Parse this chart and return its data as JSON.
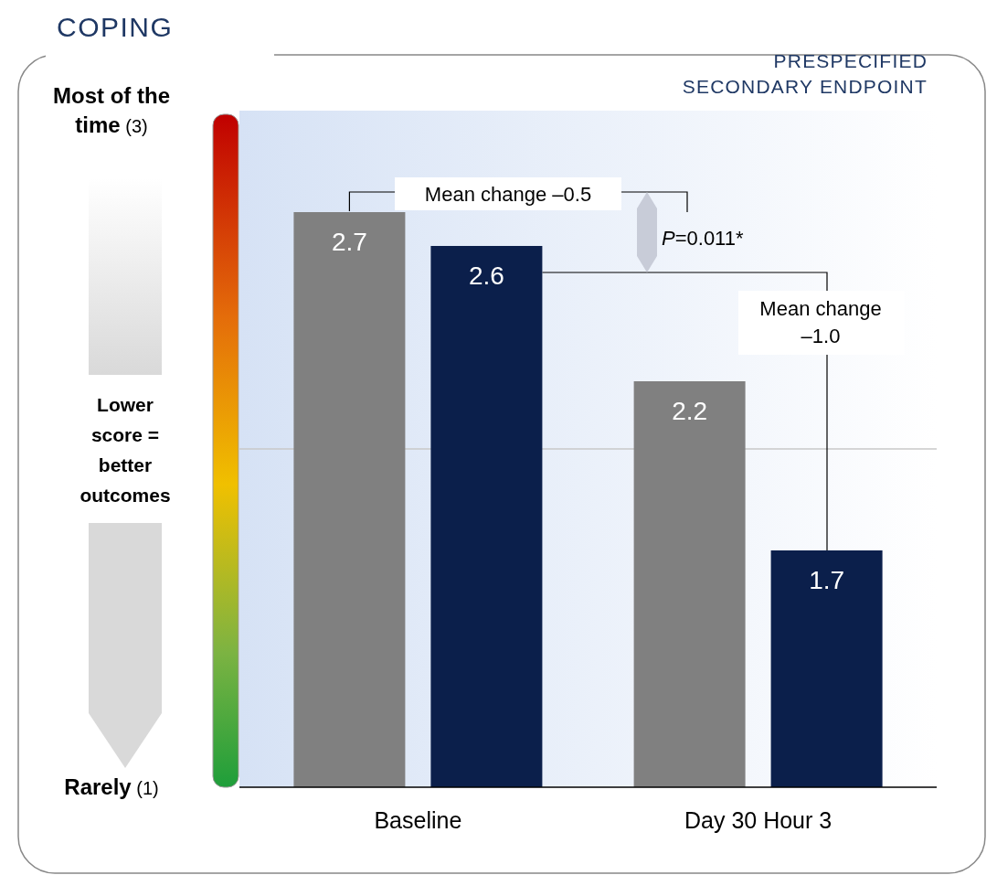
{
  "chart_data": {
    "type": "bar",
    "title": "COPING",
    "subtitle": "PRESPECIFIED SECONDARY ENDPOINT",
    "categories": [
      "Baseline",
      "Day 30 Hour 3"
    ],
    "series": [
      {
        "color": "#808080",
        "values": [
          2.7,
          2.2
        ]
      },
      {
        "color": "#0b1f4b",
        "values": [
          2.6,
          1.7
        ]
      }
    ],
    "ylim": [
      1,
      3
    ],
    "yticks": [
      {
        "value": 3,
        "label": "Most of the time (3)"
      },
      {
        "value": 1,
        "label": "Rarely (1)"
      }
    ],
    "ref_lines": [
      {
        "axis": "y",
        "value": 2,
        "color": "#c8c8c8"
      }
    ],
    "data_labels": true,
    "grid": false,
    "annotations": [
      "Mean change –0.5",
      "P=0.011*",
      "Mean change –1.0",
      "Lower score = better outcomes"
    ]
  }
}
